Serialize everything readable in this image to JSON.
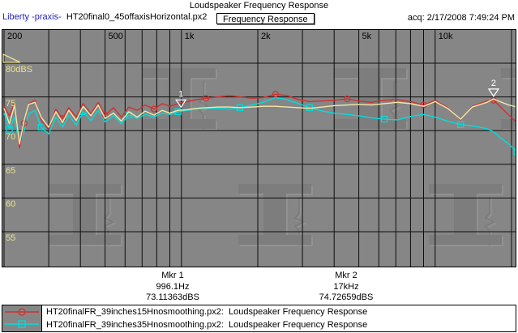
{
  "header": {
    "title": "Loudspeaker Frequency Response",
    "app_label": "Liberty -praxis-",
    "file_label": "HT20final0_45offaxisHorizontal.px2",
    "view_button": "Frequency Response",
    "acq": "acq: 2/17/2008 7:49:24 PM"
  },
  "colors": {
    "app_label_blue": "#2222bb",
    "plot_background": "#868686",
    "grid_line": "#0d0d0d",
    "axis_label_yellow": "#e9e28e",
    "trace_red": "#d03030",
    "trace_cyan": "#00dede",
    "trace_active_yellow": "#f0eaa8",
    "marker_white": "#ffffff"
  },
  "chart_data": {
    "type": "line",
    "title": "Loudspeaker Frequency Response",
    "x_axis": {
      "unit": "Hz",
      "scale": "log",
      "range": [
        200,
        21000
      ],
      "gridlines": [
        {
          "f": 200,
          "label": "200"
        },
        {
          "f": 300
        },
        {
          "f": 400
        },
        {
          "f": 500,
          "label": "500"
        },
        {
          "f": 600
        },
        {
          "f": 700
        },
        {
          "f": 800
        },
        {
          "f": 900
        },
        {
          "f": 1000,
          "label": "1k"
        },
        {
          "f": 2000,
          "label": "2k"
        },
        {
          "f": 3000
        },
        {
          "f": 4000
        },
        {
          "f": 5000,
          "label": "5k"
        },
        {
          "f": 6000
        },
        {
          "f": 7000
        },
        {
          "f": 8000
        },
        {
          "f": 9000
        },
        {
          "f": 10000,
          "label": "10k"
        },
        {
          "f": 20000
        }
      ]
    },
    "y_axis": {
      "unit": "dBS",
      "range": [
        50,
        85
      ],
      "gridlines": [
        {
          "db": 80,
          "label": "80dBS"
        },
        {
          "db": 75,
          "label": "75"
        },
        {
          "db": 70,
          "label": "70"
        },
        {
          "db": 65,
          "label": "65"
        },
        {
          "db": 60,
          "label": "60"
        },
        {
          "db": 55,
          "label": "55"
        }
      ]
    },
    "series": [
      {
        "name": "HT20finalFR_39inches35Hnosmoothing.px2",
        "color": "#00dede",
        "marker": "square",
        "points": [
          [
            200,
            72.6
          ],
          [
            210,
            70.2
          ],
          [
            220,
            72.0
          ],
          [
            230,
            67.8
          ],
          [
            240,
            70.0
          ],
          [
            250,
            72.5
          ],
          [
            265,
            73.0
          ],
          [
            280,
            70.5
          ],
          [
            300,
            69.5
          ],
          [
            320,
            72.0
          ],
          [
            340,
            70.5
          ],
          [
            360,
            72.3
          ],
          [
            385,
            70.8
          ],
          [
            410,
            72.8
          ],
          [
            440,
            71.5
          ],
          [
            470,
            73.0
          ],
          [
            500,
            71.3
          ],
          [
            540,
            72.2
          ],
          [
            580,
            71.0
          ],
          [
            620,
            72.3
          ],
          [
            670,
            71.8
          ],
          [
            720,
            72.4
          ],
          [
            780,
            72.0
          ],
          [
            840,
            72.6
          ],
          [
            900,
            72.4
          ],
          [
            970,
            72.8
          ],
          [
            1050,
            73.0
          ],
          [
            1150,
            73.2
          ],
          [
            1250,
            73.3
          ],
          [
            1400,
            73.3
          ],
          [
            1550,
            73.2
          ],
          [
            1700,
            73.4
          ],
          [
            1900,
            73.8
          ],
          [
            2100,
            74.2
          ],
          [
            2350,
            74.9
          ],
          [
            2600,
            74.6
          ],
          [
            2900,
            74.0
          ],
          [
            3200,
            73.4
          ],
          [
            3600,
            72.9
          ],
          [
            4000,
            72.6
          ],
          [
            4500,
            72.4
          ],
          [
            5000,
            72.2
          ],
          [
            5600,
            71.9
          ],
          [
            6300,
            71.7
          ],
          [
            7100,
            71.6
          ],
          [
            8000,
            72.1
          ],
          [
            9000,
            72.4
          ],
          [
            10000,
            72.0
          ],
          [
            11200,
            71.4
          ],
          [
            12600,
            70.9
          ],
          [
            14000,
            70.7
          ],
          [
            16000,
            70.3
          ],
          [
            17000,
            69.8
          ],
          [
            18000,
            69.0
          ],
          [
            19500,
            68.0
          ],
          [
            21000,
            66.9
          ]
        ]
      },
      {
        "name": "HT20finalFR_39inches15Hnosmoothing.px2",
        "color": "#d03030",
        "marker": "circle",
        "points": [
          [
            200,
            73.6
          ],
          [
            210,
            72.2
          ],
          [
            220,
            74.1
          ],
          [
            230,
            67.4
          ],
          [
            240,
            71.1
          ],
          [
            250,
            74.0
          ],
          [
            265,
            74.5
          ],
          [
            280,
            71.6
          ],
          [
            300,
            70.1
          ],
          [
            320,
            73.2
          ],
          [
            340,
            71.8
          ],
          [
            360,
            73.4
          ],
          [
            385,
            72.0
          ],
          [
            410,
            74.0
          ],
          [
            440,
            72.5
          ],
          [
            470,
            74.2
          ],
          [
            500,
            72.3
          ],
          [
            540,
            73.4
          ],
          [
            580,
            72.0
          ],
          [
            620,
            73.5
          ],
          [
            670,
            73.0
          ],
          [
            720,
            73.8
          ],
          [
            780,
            73.2
          ],
          [
            840,
            74.0
          ],
          [
            900,
            73.6
          ],
          [
            970,
            74.0
          ],
          [
            1050,
            74.3
          ],
          [
            1150,
            74.6
          ],
          [
            1250,
            74.8
          ],
          [
            1400,
            75.0
          ],
          [
            1550,
            75.2
          ],
          [
            1700,
            75.0
          ],
          [
            1900,
            74.8
          ],
          [
            2100,
            74.9
          ],
          [
            2350,
            75.4
          ],
          [
            2600,
            75.2
          ],
          [
            2900,
            74.6
          ],
          [
            3200,
            74.3
          ],
          [
            3600,
            74.4
          ],
          [
            4000,
            74.5
          ],
          [
            4500,
            74.7
          ],
          [
            5000,
            74.4
          ],
          [
            5600,
            74.2
          ],
          [
            6300,
            74.5
          ],
          [
            7100,
            74.6
          ],
          [
            8000,
            74.3
          ],
          [
            9000,
            73.8
          ],
          [
            10000,
            74.5
          ],
          [
            11200,
            73.4
          ],
          [
            12600,
            71.6
          ],
          [
            14000,
            73.6
          ],
          [
            16000,
            74.4
          ],
          [
            17000,
            74.5
          ],
          [
            18000,
            73.6
          ],
          [
            19500,
            72.3
          ],
          [
            21000,
            71.2
          ]
        ]
      },
      {
        "name": "HT20final0_45offaxisHorizontal.px2 (active)",
        "color": "#f0eaa8",
        "marker": "none",
        "points": [
          [
            200,
            73.3
          ],
          [
            210,
            71.0
          ],
          [
            220,
            73.8
          ],
          [
            230,
            68.0
          ],
          [
            240,
            71.5
          ],
          [
            250,
            73.9
          ],
          [
            265,
            74.2
          ],
          [
            280,
            72.0
          ],
          [
            300,
            70.5
          ],
          [
            320,
            72.8
          ],
          [
            340,
            71.2
          ],
          [
            360,
            73.0
          ],
          [
            385,
            71.5
          ],
          [
            410,
            73.6
          ],
          [
            440,
            72.2
          ],
          [
            470,
            73.8
          ],
          [
            500,
            71.8
          ],
          [
            540,
            72.6
          ],
          [
            580,
            71.4
          ],
          [
            620,
            72.8
          ],
          [
            670,
            72.0
          ],
          [
            720,
            72.9
          ],
          [
            780,
            72.3
          ],
          [
            840,
            73.0
          ],
          [
            900,
            72.6
          ],
          [
            970,
            73.0
          ],
          [
            1050,
            73.1
          ],
          [
            1150,
            73.3
          ],
          [
            1250,
            73.4
          ],
          [
            1400,
            73.5
          ],
          [
            1550,
            73.5
          ],
          [
            1700,
            73.4
          ],
          [
            1900,
            73.5
          ],
          [
            2100,
            73.6
          ],
          [
            2350,
            73.6
          ],
          [
            2600,
            73.5
          ],
          [
            2900,
            73.4
          ],
          [
            3200,
            73.3
          ],
          [
            3600,
            73.5
          ],
          [
            4000,
            73.7
          ],
          [
            4500,
            73.8
          ],
          [
            5000,
            73.9
          ],
          [
            5600,
            73.8
          ],
          [
            6300,
            74.0
          ],
          [
            7100,
            74.2
          ],
          [
            8000,
            74.0
          ],
          [
            9000,
            73.6
          ],
          [
            10000,
            74.3
          ],
          [
            11200,
            73.3
          ],
          [
            12600,
            71.7
          ],
          [
            14000,
            73.5
          ],
          [
            16000,
            74.2
          ],
          [
            17000,
            74.7
          ],
          [
            18000,
            74.3
          ],
          [
            19500,
            73.8
          ],
          [
            21000,
            73.5
          ]
        ]
      }
    ],
    "markers": [
      {
        "n": "1",
        "f": 996.1,
        "db": 73.11363
      },
      {
        "n": "2",
        "f": 17000,
        "db": 74.72659
      }
    ],
    "legend_position": "bottom"
  },
  "marker_readout": {
    "mkr1": {
      "title": "Mkr 1",
      "freq": "996.1Hz",
      "level": "73.11363dBS"
    },
    "mkr2": {
      "title": "Mkr 2",
      "freq": "17kHz",
      "level": "74.72659dBS"
    }
  },
  "legend": {
    "items": [
      {
        "marker": "circle",
        "color": "#d03030",
        "label": "HT20finalFR_39inches15Hnosmoothing.px2:  Loudspeaker Frequency Response"
      },
      {
        "marker": "square",
        "color": "#00dede",
        "label": "HT20finalFR_39inches35Hnosmoothing.px2:  Loudspeaker Frequency Response"
      }
    ]
  }
}
